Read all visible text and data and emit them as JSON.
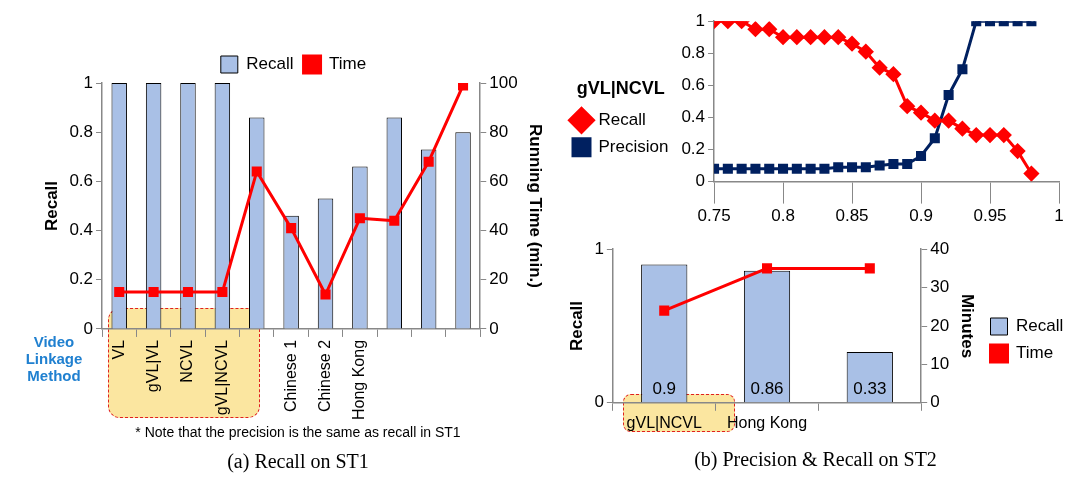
{
  "chart_data": [
    {
      "type": "bar",
      "categories": [
        "VL",
        "gVL|VL",
        "NCVL",
        "gVL|NCVL",
        null,
        "Chinese 1",
        "Chinese 2",
        "Hong Kong",
        null,
        null,
        null
      ],
      "series": [
        {
          "name": "Recall",
          "type": "bar",
          "color": "#a9c0e6",
          "values": [
            1,
            1,
            1,
            1,
            0.86,
            0.46,
            0.53,
            0.66,
            0.86,
            0.73,
            0.8
          ]
        },
        {
          "name": "Time",
          "type": "line",
          "axis": "y2",
          "color": "#ff0000",
          "marker": "square",
          "values": [
            15,
            15,
            15,
            15,
            64,
            41,
            14,
            45,
            44,
            68,
            99
          ]
        }
      ],
      "ylabel": "Recall",
      "y2label": "Running Time (min.)",
      "ylim": [
        0,
        1
      ],
      "yticks": [
        0,
        0.2,
        0.4,
        0.6,
        0.8,
        1
      ],
      "y2lim": [
        0,
        100
      ],
      "y2ticks": [
        0,
        20,
        40,
        60,
        80,
        100
      ],
      "legend": "top",
      "annotations": [
        "Video Linkage Method",
        "* Note that the precision is the same as recall in ST1",
        "(a) Recall on ST1"
      ]
    },
    {
      "type": "line",
      "x": [
        0.75,
        0.76,
        0.77,
        0.78,
        0.79,
        0.8,
        0.81,
        0.82,
        0.83,
        0.84,
        0.85,
        0.86,
        0.87,
        0.88,
        0.89,
        0.9,
        0.91,
        0.92,
        0.93,
        0.94,
        0.95,
        0.96,
        0.97,
        0.98
      ],
      "series": [
        {
          "name": "Recall",
          "color": "#ff0000",
          "marker": "diamond",
          "values": [
            1,
            1,
            1,
            0.95,
            0.95,
            0.9,
            0.9,
            0.9,
            0.9,
            0.9,
            0.86,
            0.81,
            0.71,
            0.67,
            0.47,
            0.43,
            0.38,
            0.38,
            0.33,
            0.29,
            0.29,
            0.29,
            0.19,
            0.05
          ]
        },
        {
          "name": "Precision",
          "color": "#002060",
          "marker": "square",
          "values": [
            0.08,
            0.08,
            0.08,
            0.08,
            0.08,
            0.08,
            0.08,
            0.08,
            0.08,
            0.09,
            0.09,
            0.09,
            0.1,
            0.11,
            0.11,
            0.16,
            0.27,
            0.54,
            0.7,
            1,
            1,
            1,
            1,
            1
          ]
        }
      ],
      "legend_title": "gVL|NCVL",
      "legend": "left",
      "xlim": [
        0.75,
        1
      ],
      "xticks": [
        0.75,
        0.8,
        0.85,
        0.9,
        0.95,
        1
      ],
      "ylim": [
        0,
        1
      ],
      "yticks": [
        0,
        0.2,
        0.4,
        0.6,
        0.8,
        1
      ]
    },
    {
      "type": "bar",
      "categories": [
        "gVL|NCVL",
        "Hong Kong",
        null
      ],
      "series": [
        {
          "name": "Recall",
          "type": "bar",
          "color": "#a9c0e6",
          "values": [
            0.9,
            0.86,
            0.33
          ],
          "value_labels": [
            "0.9",
            "0.86",
            "0.33"
          ]
        },
        {
          "name": "Time",
          "type": "line",
          "axis": "y2",
          "color": "#ff0000",
          "marker": "square",
          "values": [
            24,
            35,
            35
          ]
        }
      ],
      "ylabel": "Recall",
      "y2label": "Minutes",
      "ylim": [
        0,
        1
      ],
      "yticks": [
        0,
        1
      ],
      "y2lim": [
        0,
        40
      ],
      "y2ticks": [
        0,
        10,
        20,
        30,
        40
      ],
      "legend": "right",
      "annotations": [
        "(b) Precision & Recall on ST2"
      ]
    }
  ]
}
